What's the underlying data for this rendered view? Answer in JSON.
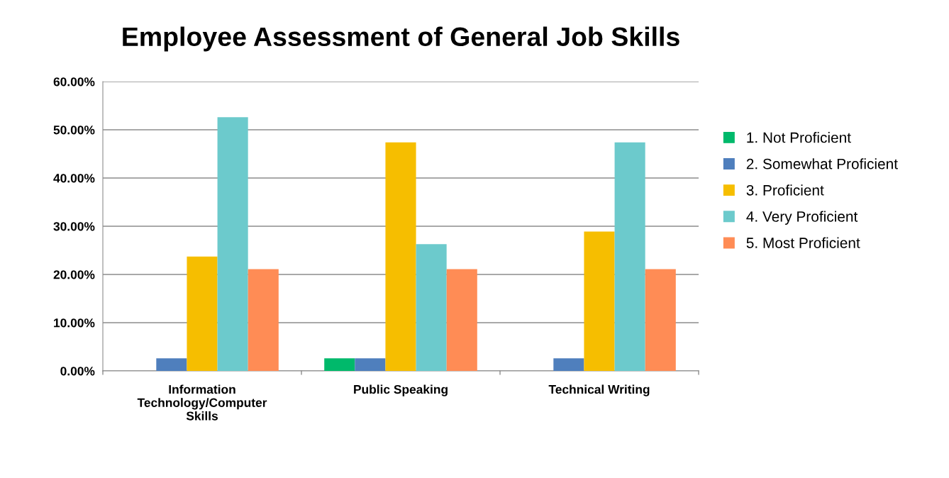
{
  "chart_data": {
    "type": "bar",
    "title": "Employee Assessment of General Job Skills",
    "categories": [
      "Information\nTechnology/Computer\nSkills",
      "Public Speaking",
      "Technical Writing"
    ],
    "series": [
      {
        "name": "1. Not Proficient",
        "color": "#00b96b",
        "values": [
          0,
          2.6,
          0
        ]
      },
      {
        "name": "2. Somewhat Proficient",
        "color": "#4f7fbd",
        "values": [
          2.6,
          2.6,
          2.6
        ]
      },
      {
        "name": "3. Proficient",
        "color": "#f6be00",
        "values": [
          23.7,
          47.4,
          28.9
        ]
      },
      {
        "name": "4. Very Proficient",
        "color": "#6ccacc",
        "values": [
          52.6,
          26.3,
          47.4
        ]
      },
      {
        "name": "5. Most Proficient",
        "color": "#ff8c55",
        "values": [
          21.1,
          21.1,
          21.1
        ]
      }
    ],
    "ylim": [
      0,
      60
    ],
    "yticks": [
      {
        "value": 0,
        "label": "0.00%"
      },
      {
        "value": 10,
        "label": "10.00%"
      },
      {
        "value": 20,
        "label": "20.00%"
      },
      {
        "value": 30,
        "label": "30.00%"
      },
      {
        "value": 40,
        "label": "40.00%"
      },
      {
        "value": 50,
        "label": "50.00%"
      },
      {
        "value": 60,
        "label": "60.00%"
      }
    ],
    "grid": "y",
    "legend": "right"
  }
}
